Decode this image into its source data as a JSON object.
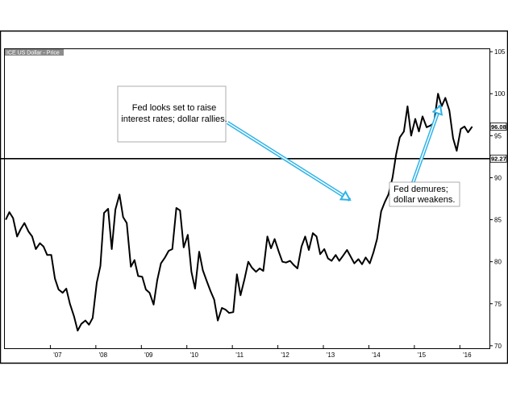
{
  "chart_data": {
    "type": "line",
    "legend": "ICE US Dollar - Price",
    "x_tick_labels": [
      "'07",
      "'08",
      "'09",
      "'10",
      "'11",
      "'12",
      "'13",
      "'14",
      "'15",
      "'16"
    ],
    "x_tick_years": [
      2007,
      2008,
      2009,
      2010,
      2011,
      2012,
      2013,
      2014,
      2015,
      2016
    ],
    "xlim": [
      2006.0,
      2016.65
    ],
    "y_tick_labels": [
      "70",
      "75",
      "80",
      "85",
      "90",
      "95",
      "100",
      "105"
    ],
    "y_ticks": [
      70,
      75,
      80,
      85,
      90,
      95,
      100,
      105
    ],
    "ylim": [
      69.7,
      105.3
    ],
    "last_value_label": "96.08",
    "last_value": 96.08,
    "reference_line_label": "92.27",
    "reference_line_value": 92.27,
    "series": [
      {
        "x": [
          2006.02,
          2006.1,
          2006.18,
          2006.27,
          2006.35,
          2006.43,
          2006.52,
          2006.6,
          2006.68,
          2006.77,
          2006.85,
          2006.93,
          2007.02,
          2007.1,
          2007.18,
          2007.27,
          2007.35,
          2007.43,
          2007.52,
          2007.6,
          2007.68,
          2007.77,
          2007.85,
          2007.93,
          2008.02,
          2008.1,
          2008.18,
          2008.27,
          2008.35,
          2008.43,
          2008.52,
          2008.6,
          2008.68,
          2008.77,
          2008.85,
          2008.93,
          2009.02,
          2009.1,
          2009.18,
          2009.27,
          2009.35,
          2009.43,
          2009.52,
          2009.6,
          2009.68,
          2009.77,
          2009.85,
          2009.93,
          2010.02,
          2010.1,
          2010.18,
          2010.27,
          2010.35,
          2010.43,
          2010.52,
          2010.6,
          2010.68,
          2010.77,
          2010.85,
          2010.93,
          2011.02,
          2011.1,
          2011.18,
          2011.27,
          2011.35,
          2011.43,
          2011.52,
          2011.6,
          2011.68,
          2011.77,
          2011.85,
          2011.93,
          2012.02,
          2012.1,
          2012.18,
          2012.27,
          2012.35,
          2012.43,
          2012.52,
          2012.6,
          2012.68,
          2012.77,
          2012.85,
          2012.93,
          2013.02,
          2013.1,
          2013.18,
          2013.27,
          2013.35,
          2013.43,
          2013.52,
          2013.6,
          2013.68,
          2013.77,
          2013.85,
          2013.93,
          2014.02,
          2014.1,
          2014.18,
          2014.27,
          2014.35,
          2014.43,
          2014.52,
          2014.6,
          2014.68,
          2014.77,
          2014.85,
          2014.93,
          2015.02,
          2015.1,
          2015.18,
          2015.27,
          2015.35,
          2015.43,
          2015.52,
          2015.6,
          2015.68,
          2015.77,
          2015.85,
          2015.93,
          2016.02,
          2016.1,
          2016.18,
          2016.27
        ],
        "values": [
          85.0,
          85.9,
          85.2,
          83.0,
          83.9,
          84.6,
          83.6,
          83.0,
          81.5,
          82.2,
          81.8,
          80.8,
          80.8,
          78.0,
          76.7,
          76.3,
          76.8,
          75.0,
          73.5,
          71.8,
          72.6,
          73.0,
          72.5,
          73.3,
          77.5,
          79.5,
          85.8,
          86.3,
          81.5,
          86.2,
          88.0,
          85.3,
          84.6,
          79.4,
          80.2,
          78.3,
          78.2,
          76.7,
          76.3,
          74.9,
          77.8,
          79.8,
          80.5,
          81.3,
          81.5,
          86.4,
          86.1,
          81.7,
          83.2,
          78.8,
          76.8,
          81.2,
          79.0,
          77.8,
          76.5,
          75.5,
          73.0,
          74.5,
          74.3,
          73.9,
          74.0,
          78.5,
          76.0,
          78.0,
          80.0,
          79.3,
          78.8,
          79.2,
          78.9,
          83.0,
          81.6,
          82.7,
          81.2,
          80.0,
          79.9,
          80.1,
          79.6,
          79.2,
          81.8,
          83.0,
          81.4,
          83.4,
          83.0,
          80.9,
          81.5,
          80.4,
          80.1,
          80.8,
          80.1,
          80.7,
          81.4,
          80.6,
          79.8,
          80.3,
          79.7,
          80.5,
          79.8,
          81.1,
          82.7,
          86.0,
          87.1,
          88.0,
          90.0,
          92.8,
          94.8,
          95.5,
          98.5,
          95.0,
          97.0,
          95.5,
          97.3,
          96.0,
          96.2,
          96.5,
          100.0,
          98.5,
          99.5,
          98.0,
          94.7,
          93.2,
          95.8,
          96.1,
          95.4,
          96.08
        ]
      }
    ],
    "annotations": [
      {
        "lines": [
          "Fed looks set to raise",
          "interest rates; dollar rallies."
        ]
      },
      {
        "lines": [
          "Fed demures;",
          "dollar weakens."
        ]
      }
    ],
    "colors": {
      "line": "#000000",
      "arrow": "#2fb3e8",
      "legend_bg": "#8c8c8c",
      "frame": "#000000"
    }
  }
}
